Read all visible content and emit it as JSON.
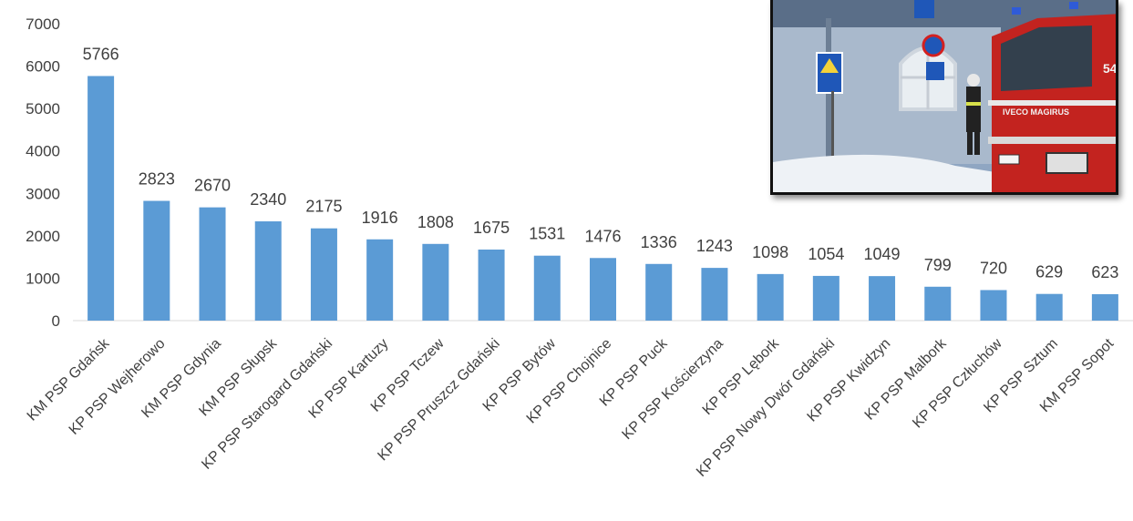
{
  "chart_data": {
    "type": "bar",
    "title": "",
    "xlabel": "",
    "ylabel": "",
    "ylim": [
      0,
      7000
    ],
    "yticks": [
      0,
      1000,
      2000,
      3000,
      4000,
      5000,
      6000,
      7000
    ],
    "grid": false,
    "bar_color": "#5b9bd5",
    "categories": [
      "KM PSP Gdańsk",
      "KP PSP Wejherowo",
      "KM PSP Gdynia",
      "KM PSP Słupsk",
      "KP PSP Starogard Gdański",
      "KP PSP Kartuzy",
      "KP PSP Tczew",
      "KP PSP Pruszcz Gdański",
      "KP PSP Bytów",
      "KP PSP Chojnice",
      "KP PSP Puck",
      "KP PSP Kościerzyna",
      "KP PSP Lębork",
      "KP PSP Nowy Dwór Gdański",
      "KP PSP Kwidzyn",
      "KP PSP Malbork",
      "KP PSP Człuchów",
      "KP PSP Sztum",
      "KM PSP Sopot"
    ],
    "values": [
      5766,
      2823,
      2670,
      2340,
      2175,
      1916,
      1808,
      1675,
      1531,
      1476,
      1336,
      1243,
      1098,
      1054,
      1049,
      799,
      720,
      629,
      623
    ]
  },
  "photo": {
    "description_icon": "fire-truck-photo",
    "truck_text": "IVECO MAGIRUS",
    "truck_number": "54"
  }
}
